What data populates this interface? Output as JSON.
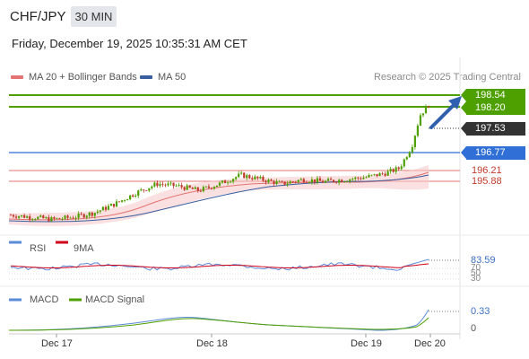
{
  "header": {
    "symbol": "CHF/JPY",
    "timeframe": "30 MIN",
    "datetime": "Friday, December 19, 2025 10:35:31 AM CET"
  },
  "legend": {
    "ma20": "MA 20 + Bollinger Bands",
    "ma50": "MA 50",
    "ma20_color": "#e57373",
    "ma50_color": "#3a5fa0"
  },
  "research": "Research © 2025 Trading Central",
  "levels": {
    "target_high": "198.54",
    "target_low": "198.20",
    "current": "197.53",
    "pivot": "196.77",
    "support1": "196.21",
    "support2": "195.88"
  },
  "rsi": {
    "label": "RSI",
    "ma_label": "9MA",
    "value": "83.59",
    "tick_70": "70",
    "tick_50": "50",
    "tick_30": "30"
  },
  "macd": {
    "label": "MACD",
    "signal_label": "MACD Signal",
    "value": "0.33",
    "zero": "0"
  },
  "x_axis": [
    "Dec 17",
    "Dec 18",
    "Dec 19",
    "Dec 20"
  ],
  "colors": {
    "up": "#4ea000",
    "down": "#c0392b",
    "blue": "#2f6fd6",
    "rsi": "#5b8ad8",
    "rsi_ma": "#d0021b",
    "macd": "#5b8ad8",
    "signal": "#4ea000"
  },
  "chart_data": {
    "type": "candlestick",
    "y_range": [
      195.0,
      199.0
    ],
    "horizontal_levels": [
      198.54,
      198.2,
      197.53,
      196.77,
      196.21,
      195.88
    ],
    "price_path": [
      [
        0,
        195.05
      ],
      [
        0.05,
        195.0
      ],
      [
        0.1,
        194.95
      ],
      [
        0.15,
        195.0
      ],
      [
        0.2,
        195.1
      ],
      [
        0.25,
        195.3
      ],
      [
        0.3,
        195.55
      ],
      [
        0.35,
        195.75
      ],
      [
        0.4,
        195.7
      ],
      [
        0.45,
        195.6
      ],
      [
        0.5,
        195.75
      ],
      [
        0.55,
        195.95
      ],
      [
        0.6,
        195.85
      ],
      [
        0.65,
        195.75
      ],
      [
        0.7,
        195.85
      ],
      [
        0.75,
        195.8
      ],
      [
        0.8,
        195.85
      ],
      [
        0.85,
        195.9
      ],
      [
        0.9,
        196.0
      ],
      [
        0.93,
        196.1
      ],
      [
        0.96,
        196.6
      ],
      [
        0.98,
        197.3
      ],
      [
        1.0,
        197.53
      ]
    ]
  }
}
